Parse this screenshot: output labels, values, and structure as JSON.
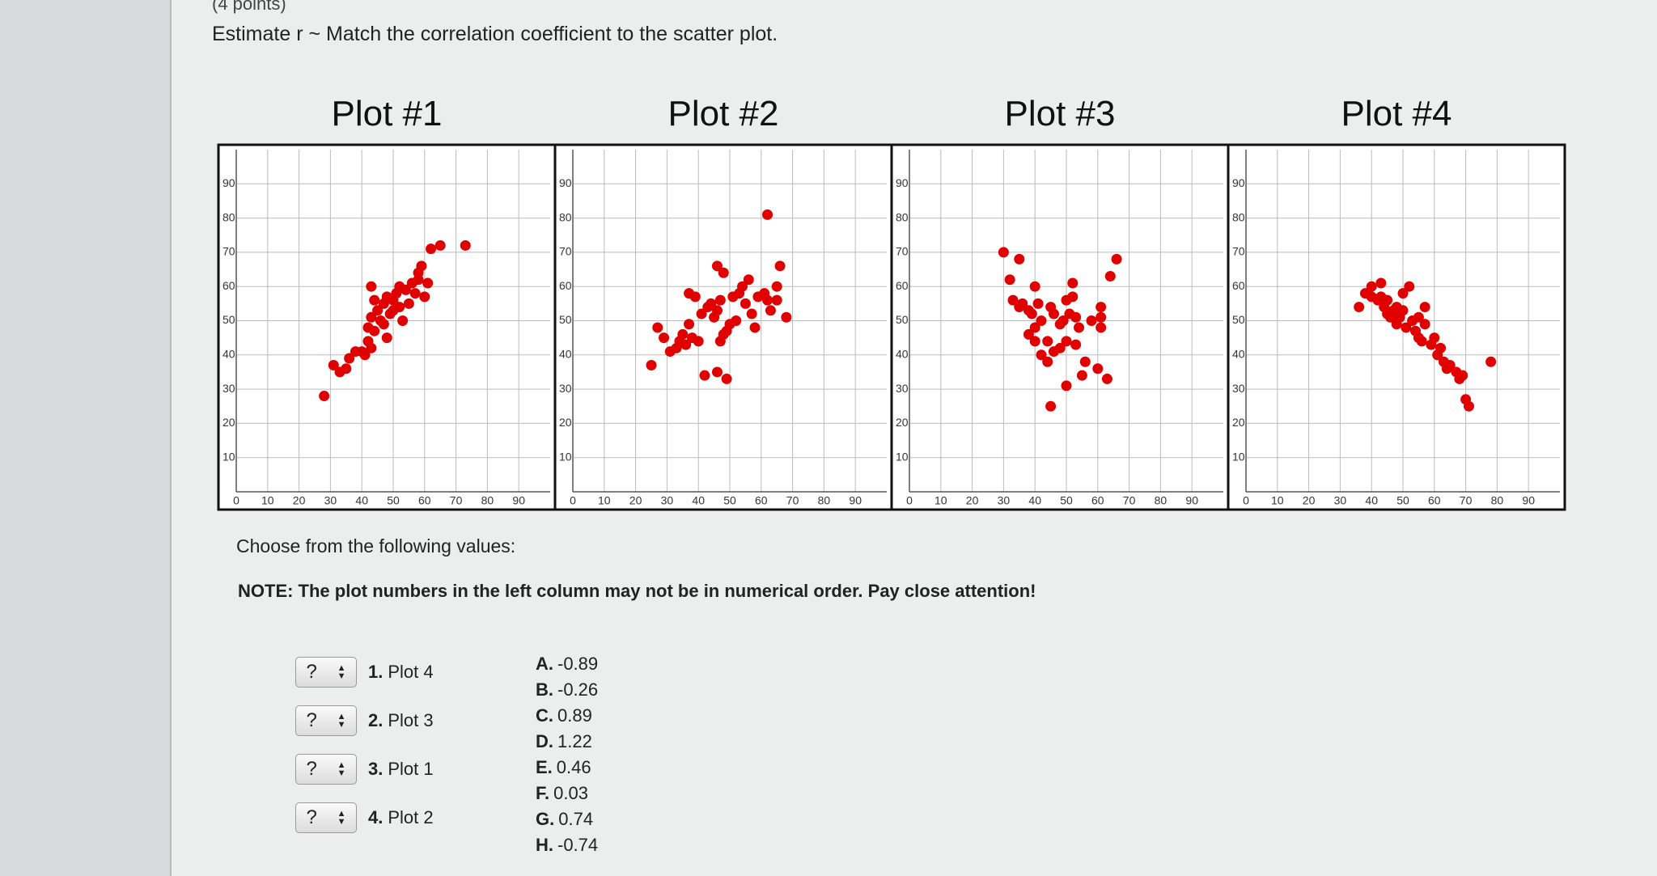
{
  "header": {
    "points": "(4 points)",
    "instruction": "Estimate r ~ Match the correlation coefficient to the scatter plot."
  },
  "chart_data": [
    {
      "type": "scatter",
      "title": "Plot #1",
      "color": "#e00000",
      "xlim": [
        0,
        100
      ],
      "ylim": [
        0,
        100
      ],
      "xticks": [
        0,
        10,
        20,
        30,
        40,
        50,
        60,
        70,
        80,
        90
      ],
      "yticks": [
        10,
        20,
        30,
        40,
        50,
        60,
        70,
        80,
        90
      ],
      "grid": true,
      "x": [
        28,
        31,
        33,
        35,
        36,
        38,
        40,
        41,
        42,
        43,
        42,
        43,
        44,
        45,
        46,
        47,
        48,
        47,
        48,
        49,
        50,
        51,
        52,
        53,
        54,
        55,
        56,
        57,
        58,
        58,
        59,
        60,
        61,
        62,
        65,
        73,
        43,
        44,
        52,
        50
      ],
      "values": [
        28,
        37,
        35,
        36,
        39,
        41,
        41,
        40,
        44,
        42,
        48,
        51,
        47,
        53,
        50,
        49,
        45,
        55,
        57,
        52,
        56,
        58,
        54,
        50,
        59,
        55,
        61,
        58,
        62,
        64,
        66,
        57,
        61,
        71,
        72,
        72,
        60,
        56,
        60,
        53
      ]
    },
    {
      "type": "scatter",
      "title": "Plot #2",
      "color": "#e00000",
      "xlim": [
        0,
        100
      ],
      "ylim": [
        0,
        100
      ],
      "xticks": [
        0,
        10,
        20,
        30,
        40,
        50,
        60,
        70,
        80,
        90
      ],
      "yticks": [
        10,
        20,
        30,
        40,
        50,
        60,
        70,
        80,
        90
      ],
      "grid": true,
      "x": [
        25,
        27,
        29,
        31,
        33,
        34,
        35,
        36,
        38,
        40,
        37,
        37,
        41,
        43,
        44,
        45,
        46,
        47,
        47,
        48,
        49,
        50,
        51,
        52,
        53,
        54,
        55,
        56,
        57,
        58,
        59,
        61,
        62,
        63,
        65,
        65,
        66,
        68,
        42,
        46,
        49,
        46,
        48,
        62,
        39
      ],
      "values": [
        37,
        48,
        45,
        41,
        42,
        44,
        46,
        43,
        45,
        44,
        49,
        58,
        52,
        54,
        55,
        51,
        53,
        56,
        44,
        46,
        47,
        49,
        57,
        50,
        58,
        60,
        55,
        62,
        52,
        48,
        57,
        58,
        56,
        53,
        56,
        60,
        66,
        51,
        34,
        35,
        33,
        66,
        64,
        81,
        57
      ]
    },
    {
      "type": "scatter",
      "title": "Plot #3",
      "color": "#e00000",
      "xlim": [
        0,
        100
      ],
      "ylim": [
        0,
        100
      ],
      "xticks": [
        0,
        10,
        20,
        30,
        40,
        50,
        60,
        70,
        80,
        90
      ],
      "yticks": [
        10,
        20,
        30,
        40,
        50,
        60,
        70,
        80,
        90
      ],
      "grid": true,
      "x": [
        30,
        32,
        35,
        33,
        35,
        36,
        38,
        39,
        40,
        41,
        42,
        40,
        38,
        44,
        45,
        46,
        48,
        49,
        50,
        51,
        52,
        53,
        54,
        53,
        50,
        48,
        46,
        44,
        42,
        56,
        58,
        60,
        61,
        61,
        61,
        55,
        50,
        63,
        45,
        52,
        40,
        66,
        64
      ],
      "values": [
        70,
        62,
        68,
        56,
        54,
        55,
        53,
        52,
        48,
        55,
        50,
        44,
        46,
        44,
        54,
        52,
        49,
        50,
        56,
        52,
        57,
        51,
        48,
        43,
        44,
        42,
        41,
        38,
        40,
        38,
        50,
        36,
        48,
        51,
        54,
        34,
        31,
        33,
        25,
        61,
        60,
        68,
        63
      ]
    },
    {
      "type": "scatter",
      "title": "Plot #4",
      "color": "#e00000",
      "xlim": [
        0,
        100
      ],
      "ylim": [
        0,
        100
      ],
      "xticks": [
        0,
        10,
        20,
        30,
        40,
        50,
        60,
        70,
        80,
        90
      ],
      "yticks": [
        10,
        20,
        30,
        40,
        50,
        60,
        70,
        80,
        90
      ],
      "grid": true,
      "x": [
        36,
        38,
        40,
        42,
        43,
        44,
        45,
        45,
        46,
        47,
        48,
        48,
        49,
        50,
        50,
        51,
        52,
        53,
        54,
        55,
        55,
        56,
        57,
        57,
        59,
        60,
        61,
        62,
        63,
        64,
        65,
        67,
        68,
        69,
        70,
        71,
        78,
        40,
        43
      ],
      "values": [
        54,
        58,
        60,
        56,
        57,
        54,
        52,
        56,
        51,
        53,
        54,
        49,
        51,
        53,
        58,
        48,
        60,
        50,
        47,
        45,
        51,
        44,
        49,
        54,
        43,
        45,
        40,
        42,
        38,
        36,
        37,
        35,
        33,
        34,
        27,
        25,
        38,
        57,
        61
      ]
    }
  ],
  "quiz": {
    "choose": "Choose from the following values:",
    "note": "NOTE: The plot numbers in the left column may not be in numerical order. Pay close attention!",
    "matches": [
      {
        "select": "?",
        "number": "1.",
        "label": "Plot 4"
      },
      {
        "select": "?",
        "number": "2.",
        "label": "Plot 3"
      },
      {
        "select": "?",
        "number": "3.",
        "label": "Plot 1"
      },
      {
        "select": "?",
        "number": "4.",
        "label": "Plot 2"
      }
    ],
    "options": [
      {
        "letter": "A.",
        "value": "-0.89"
      },
      {
        "letter": "B.",
        "value": "-0.26"
      },
      {
        "letter": "C.",
        "value": "0.89"
      },
      {
        "letter": "D.",
        "value": "1.22"
      },
      {
        "letter": "E.",
        "value": "0.46"
      },
      {
        "letter": "F.",
        "value": "0.03"
      },
      {
        "letter": "G.",
        "value": "0.74"
      },
      {
        "letter": "H.",
        "value": "-0.74"
      }
    ]
  }
}
